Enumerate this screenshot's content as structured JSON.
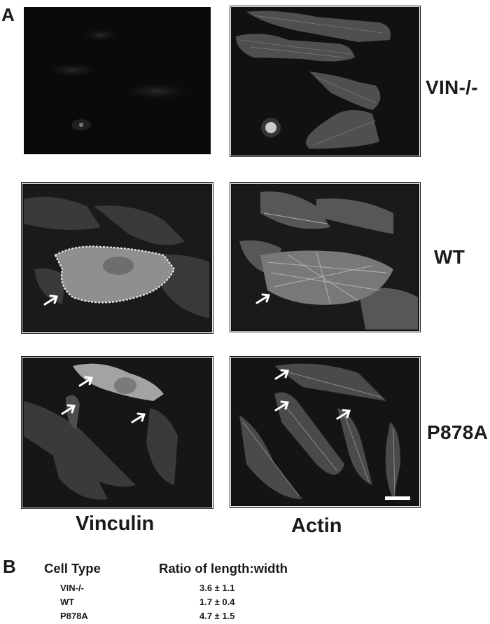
{
  "panel_a": {
    "letter": "A",
    "rows": [
      {
        "label": "VIN-/-"
      },
      {
        "label": "WT"
      },
      {
        "label": "P878A"
      }
    ],
    "columns": [
      "Vinculin",
      "Actin"
    ]
  },
  "panel_b": {
    "letter": "B",
    "table": {
      "headers": [
        "Cell Type",
        "Ratio of length:width"
      ],
      "rows": [
        {
          "cell_type": "VIN-/-",
          "ratio": "3.6 ± 1.1"
        },
        {
          "cell_type": "WT",
          "ratio": "1.7 ± 0.4"
        },
        {
          "cell_type": "P878A",
          "ratio": "4.7 ± 1.5"
        }
      ]
    }
  }
}
